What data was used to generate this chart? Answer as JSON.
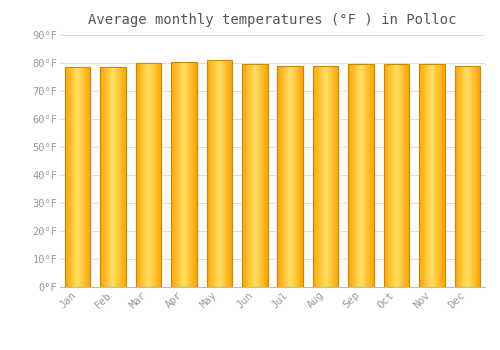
{
  "title": "Average monthly temperatures (°F ) in Polloc",
  "months": [
    "Jan",
    "Feb",
    "Mar",
    "Apr",
    "May",
    "Jun",
    "Jul",
    "Aug",
    "Sep",
    "Oct",
    "Nov",
    "Dec"
  ],
  "values": [
    78.5,
    78.5,
    80.0,
    80.5,
    81.0,
    79.5,
    79.0,
    79.0,
    79.5,
    79.5,
    79.5,
    79.0
  ],
  "ylim": [
    0,
    90
  ],
  "yticks": [
    0,
    10,
    20,
    30,
    40,
    50,
    60,
    70,
    80,
    90
  ],
  "bar_edge_color": "#E08800",
  "bar_center_color": "#FFE566",
  "bar_outer_color": "#FFA500",
  "background_color": "#FFFFFF",
  "plot_bg_color": "#FFFFFF",
  "grid_color": "#DDDDDD",
  "title_fontsize": 10,
  "tick_fontsize": 7.5,
  "font_family": "monospace",
  "tick_color": "#999999",
  "title_color": "#555555"
}
